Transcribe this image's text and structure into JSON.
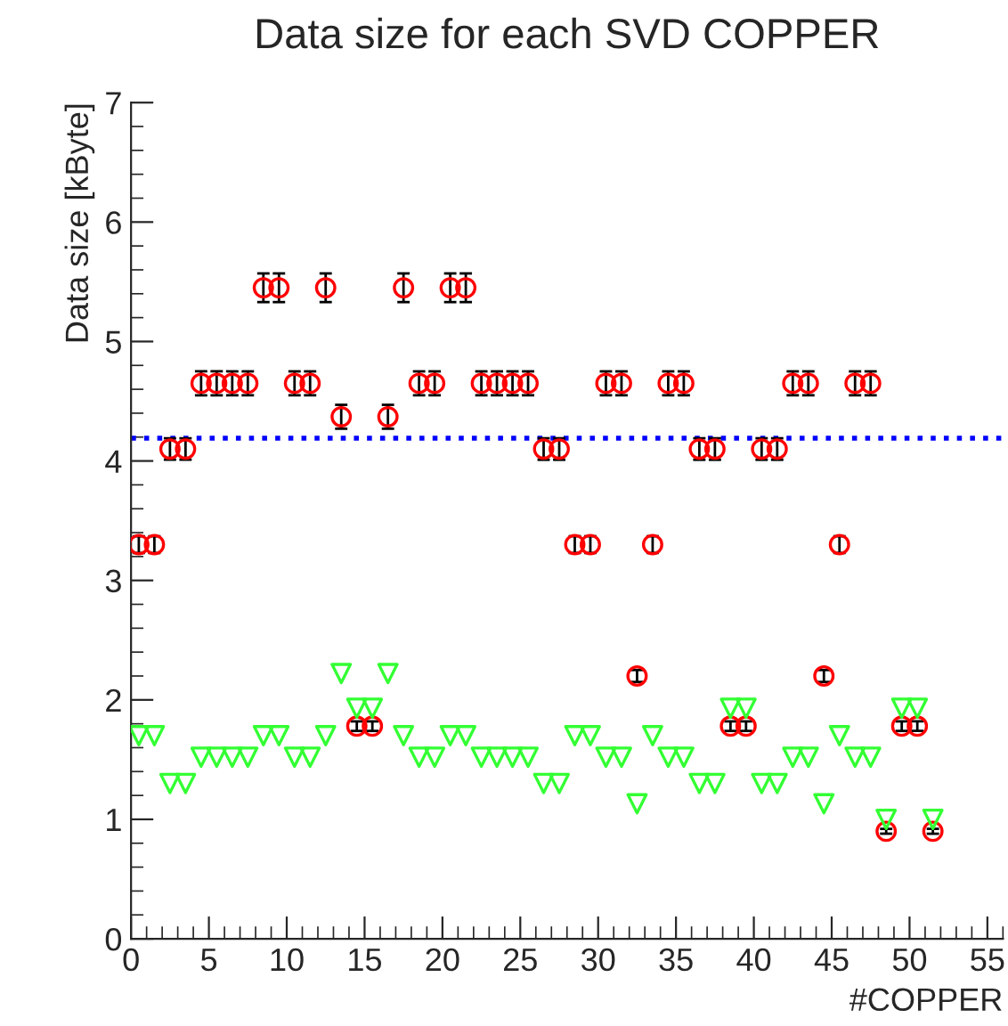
{
  "chart_data": {
    "type": "scatter",
    "title": "Data size for each SVD COPPER",
    "xlabel": "#COPPER",
    "ylabel": "Data size [kByte]",
    "x": [
      0.5,
      1.5,
      2.5,
      3.5,
      4.5,
      5.5,
      6.5,
      7.5,
      8.5,
      9.5,
      10.5,
      11.5,
      12.5,
      13.5,
      14.5,
      15.5,
      16.5,
      17.5,
      18.5,
      19.5,
      20.5,
      21.5,
      22.5,
      23.5,
      24.5,
      25.5,
      26.5,
      27.5,
      28.5,
      29.5,
      30.5,
      31.5,
      32.5,
      33.5,
      34.5,
      35.5,
      36.5,
      37.5,
      38.5,
      39.5,
      40.5,
      41.5,
      42.5,
      43.5,
      44.5,
      45.5,
      46.5,
      47.5,
      48.5,
      49.5,
      50.5,
      51.5
    ],
    "series": [
      {
        "color": "#ff0000",
        "marker": "circle",
        "values": [
          3.3,
          3.3,
          4.1,
          4.1,
          4.65,
          4.65,
          4.65,
          4.65,
          5.45,
          5.45,
          4.65,
          4.65,
          5.45,
          4.37,
          1.78,
          1.78,
          4.37,
          5.45,
          4.65,
          4.65,
          5.45,
          5.45,
          4.65,
          4.65,
          4.65,
          4.65,
          4.1,
          4.1,
          3.3,
          3.3,
          4.65,
          4.65,
          2.2,
          3.3,
          4.65,
          4.65,
          4.1,
          4.1,
          1.78,
          1.78,
          4.1,
          4.1,
          4.65,
          4.65,
          2.2,
          3.3,
          4.65,
          4.65,
          0.9,
          1.78,
          1.78,
          0.9
        ],
        "errors": [
          0.07,
          0.07,
          0.09,
          0.09,
          0.1,
          0.1,
          0.1,
          0.1,
          0.12,
          0.12,
          0.1,
          0.1,
          0.12,
          0.1,
          0.04,
          0.04,
          0.1,
          0.12,
          0.1,
          0.1,
          0.12,
          0.12,
          0.1,
          0.1,
          0.1,
          0.1,
          0.09,
          0.09,
          0.07,
          0.07,
          0.1,
          0.1,
          0.05,
          0.07,
          0.1,
          0.1,
          0.09,
          0.09,
          0.04,
          0.04,
          0.09,
          0.09,
          0.1,
          0.1,
          0.05,
          0.07,
          0.1,
          0.1,
          0.02,
          0.04,
          0.04,
          0.02
        ]
      },
      {
        "color": "#33ff33",
        "marker": "triangle",
        "values": [
          1.7,
          1.7,
          1.3,
          1.3,
          1.52,
          1.52,
          1.52,
          1.52,
          1.7,
          1.7,
          1.52,
          1.52,
          1.7,
          2.22,
          1.93,
          1.93,
          2.22,
          1.7,
          1.52,
          1.52,
          1.7,
          1.7,
          1.52,
          1.52,
          1.52,
          1.52,
          1.3,
          1.3,
          1.7,
          1.7,
          1.52,
          1.52,
          1.13,
          1.7,
          1.52,
          1.52,
          1.3,
          1.3,
          1.93,
          1.93,
          1.3,
          1.3,
          1.52,
          1.52,
          1.13,
          1.7,
          1.52,
          1.52,
          1.0,
          1.93,
          1.93,
          1.0
        ]
      }
    ],
    "ref_lines": [
      {
        "axis": "y",
        "value": 4.19,
        "color": "#0000ff",
        "line_style": "dotted"
      }
    ],
    "xlim": [
      0,
      56
    ],
    "xticks": [
      0,
      5,
      10,
      15,
      20,
      25,
      30,
      35,
      40,
      45,
      50,
      55
    ],
    "ylim": [
      0,
      7
    ],
    "yticks": [
      0,
      1,
      2,
      3,
      4,
      5,
      6,
      7
    ],
    "grid": false,
    "legend": false
  }
}
